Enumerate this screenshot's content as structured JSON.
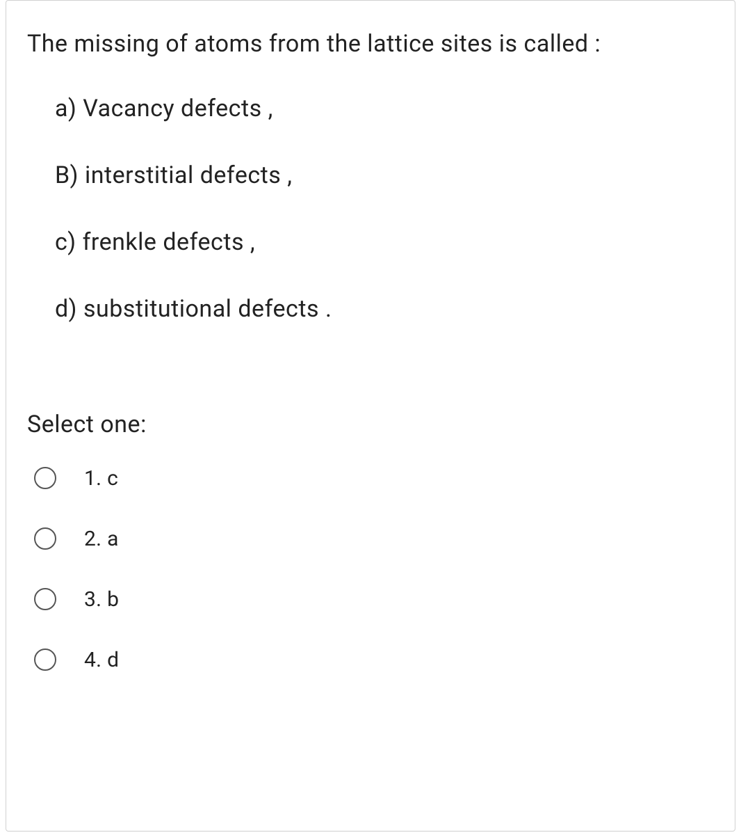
{
  "question": {
    "text": "The missing of atoms  from the lattice sites  is called :",
    "options": [
      "a) Vacancy defects ,",
      "B) interstitial defects ,",
      "c) frenkle defects ,",
      "d) substitutional  defects ."
    ]
  },
  "select_prompt": "Select one:",
  "answers": [
    {
      "label": "1. c"
    },
    {
      "label": "2. a"
    },
    {
      "label": "3. b"
    },
    {
      "label": "4. d"
    }
  ],
  "colors": {
    "text": "#222222",
    "border": "#d0d0d0",
    "radio_border": "#555555",
    "background": "#ffffff"
  },
  "typography": {
    "question_fontsize": 34,
    "option_fontsize": 34,
    "answer_fontsize": 30
  }
}
